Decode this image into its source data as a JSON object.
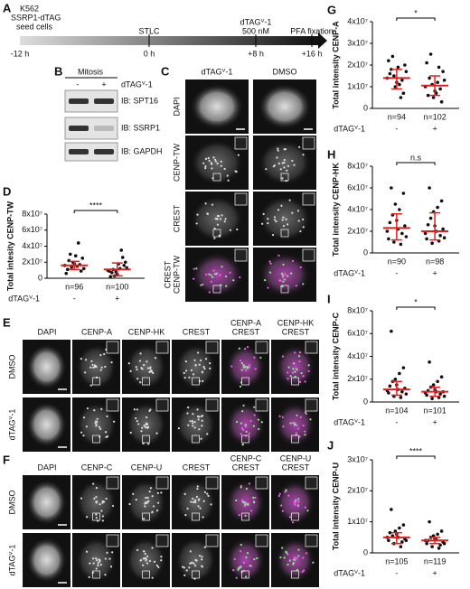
{
  "panel_labels": [
    "A",
    "B",
    "C",
    "D",
    "E",
    "F",
    "G",
    "H",
    "I",
    "J"
  ],
  "timeline": {
    "start_label": [
      "K562",
      "SSRP1-dTAG",
      "seed cells"
    ],
    "start_time": "-12 h",
    "events": [
      {
        "label": [
          "STLC"
        ],
        "time": "0 h"
      },
      {
        "label": [
          "dTAGⱽ-1",
          "500 nM"
        ],
        "time": "+8 h"
      },
      {
        "label": [
          "PFA fixation"
        ],
        "time": "+16 h"
      }
    ]
  },
  "blot": {
    "condition": "Mitosis",
    "treatment": "dTAGⱽ-1",
    "lanes": [
      "-",
      "+"
    ],
    "rows": [
      "IB: SPT16",
      "IB: SSRP1",
      "IB: GAPDH"
    ]
  },
  "panel_C": {
    "columns": [
      "dTAGⱽ-1",
      "DMSO"
    ],
    "rows": [
      [
        "DAPI"
      ],
      [
        "CENP-TW"
      ],
      [
        "CREST"
      ],
      [
        "CREST",
        "CENP-TW"
      ]
    ]
  },
  "panel_E": {
    "columns": [
      [
        "DAPI"
      ],
      [
        "CENP-A"
      ],
      [
        "CENP-HK"
      ],
      [
        "CREST"
      ],
      [
        "CENP-A",
        "CREST"
      ],
      [
        "CENP-HK",
        "CREST"
      ]
    ],
    "rows": [
      "DMSO",
      "dTAGⱽ-1"
    ]
  },
  "panel_F": {
    "columns": [
      [
        "DAPI"
      ],
      [
        "CENP-C"
      ],
      [
        "CENP-U"
      ],
      [
        "CREST"
      ],
      [
        "CENP-C",
        "CREST"
      ],
      [
        "CENP-U",
        "CREST"
      ]
    ],
    "rows": [
      "DMSO",
      "dTAGⱽ-1"
    ]
  },
  "chart_data": [
    {
      "type": "dotplot",
      "ylabel": "Total intesity CENP-TW",
      "xlabel": "dTAGⱽ-1",
      "significance": "****",
      "ylim": [
        0,
        80000000.0
      ],
      "yticks": [
        0,
        {
          "value": 20000000.0,
          "label": "2x10⁷"
        },
        {
          "value": 40000000.0,
          "label": "4x10⁷"
        },
        {
          "value": 60000000.0,
          "label": "6x10⁷"
        },
        {
          "value": 80000000.0,
          "label": "8x10⁷"
        }
      ],
      "groups": [
        {
          "name": "-",
          "n": "n=96",
          "center": 16000000.0,
          "spread": [
            11000000.0,
            21000000.0
          ],
          "values": [
            16000000.0,
            18000000.0,
            12000000.0,
            20000000.0,
            25000000.0,
            14000000.0,
            9000000.0,
            30000000.0,
            17000000.0,
            22000000.0,
            44000000.0,
            11000000.0,
            15000000.0,
            6000000.0,
            28000000.0
          ]
        },
        {
          "name": "+",
          "n": "n=100",
          "center": 11000000.0,
          "spread": [
            3000000.0,
            19000000.0
          ],
          "values": [
            10000000.0,
            5000000.0,
            13000000.0,
            8000000.0,
            20000000.0,
            3000000.0,
            16000000.0,
            11000000.0,
            26000000.0,
            7000000.0,
            35000000.0,
            2000000.0,
            12000000.0,
            9000000.0,
            18000000.0
          ]
        }
      ]
    },
    {
      "type": "dotplot",
      "ylabel": "Total intensity CENP-A",
      "xlabel": "dTAGⱽ-1",
      "significance": "*",
      "ylim": [
        0,
        40000000.0
      ],
      "yticks": [
        0,
        {
          "value": 10000000.0,
          "label": "1x10⁷"
        },
        {
          "value": 20000000.0,
          "label": "2x10⁷"
        },
        {
          "value": 30000000.0,
          "label": "3x10⁷"
        },
        {
          "value": 40000000.0,
          "label": "4x10⁷"
        }
      ],
      "groups": [
        {
          "name": "-",
          "n": "n=94",
          "center": 14000000.0,
          "spread": [
            9000000.0,
            18000000.0
          ],
          "values": [
            14000000.0,
            12000000.0,
            17000000.0,
            10000000.0,
            20000000.0,
            15000000.0,
            7000000.0,
            24000000.0,
            13000000.0,
            18000000.0,
            5000000.0,
            16000000.0,
            11000000.0,
            22000000.0,
            19000000.0
          ]
        },
        {
          "name": "+",
          "n": "n=102",
          "center": 10500000.0,
          "spread": [
            6000000.0,
            15000000.0
          ],
          "values": [
            10000000.0,
            8000000.0,
            13000000.0,
            5000000.0,
            17000000.0,
            11000000.0,
            3000000.0,
            25000000.0,
            9000000.0,
            14000000.0,
            19000000.0,
            6000000.0,
            12000000.0,
            21000000.0,
            7000000.0
          ]
        }
      ]
    },
    {
      "type": "dotplot",
      "ylabel": "Total intensity CENP-HK",
      "xlabel": "dTAGⱽ-1",
      "significance": "n.s",
      "ylim": [
        0,
        80000000.0
      ],
      "yticks": [
        0,
        {
          "value": 20000000.0,
          "label": "2x10⁷"
        },
        {
          "value": 40000000.0,
          "label": "4x10⁷"
        },
        {
          "value": 60000000.0,
          "label": "6x10⁷"
        },
        {
          "value": 80000000.0,
          "label": "8x10⁷"
        }
      ],
      "groups": [
        {
          "name": "-",
          "n": "n=90",
          "center": 23000000.0,
          "spread": [
            12000000.0,
            36000000.0
          ],
          "values": [
            20000000.0,
            30000000.0,
            15000000.0,
            45000000.0,
            25000000.0,
            10000000.0,
            55000000.0,
            35000000.0,
            18000000.0,
            60000000.0,
            8000000.0,
            28000000.0,
            40000000.0,
            13000000.0,
            22000000.0
          ]
        },
        {
          "name": "+",
          "n": "n=98",
          "center": 20000000.0,
          "spread": [
            12000000.0,
            37000000.0
          ],
          "values": [
            18000000.0,
            25000000.0,
            14000000.0,
            38000000.0,
            22000000.0,
            9000000.0,
            48000000.0,
            32000000.0,
            16000000.0,
            60000000.0,
            11000000.0,
            26000000.0,
            42000000.0,
            13000000.0,
            20000000.0
          ]
        }
      ]
    },
    {
      "type": "dotplot",
      "ylabel": "Total intensity CENP-C",
      "xlabel": "dTAGⱽ-1",
      "significance": "*",
      "ylim": [
        0,
        80000000.0
      ],
      "yticks": [
        0,
        {
          "value": 20000000.0,
          "label": "2x10⁷"
        },
        {
          "value": 40000000.0,
          "label": "4x10⁷"
        },
        {
          "value": 60000000.0,
          "label": "6x10⁷"
        },
        {
          "value": 80000000.0,
          "label": "8x10⁷"
        }
      ],
      "groups": [
        {
          "name": "-",
          "n": "n=104",
          "center": 11000000.0,
          "spread": [
            6000000.0,
            18000000.0
          ],
          "values": [
            10000000.0,
            15000000.0,
            7000000.0,
            20000000.0,
            12000000.0,
            5000000.0,
            30000000.0,
            18000000.0,
            9000000.0,
            62000000.0,
            4000000.0,
            14000000.0,
            25000000.0,
            8000000.0,
            11000000.0
          ]
        },
        {
          "name": "+",
          "n": "n=101",
          "center": 9000000.0,
          "spread": [
            5000000.0,
            13000000.0
          ],
          "values": [
            8000000.0,
            11000000.0,
            5000000.0,
            15000000.0,
            9000000.0,
            3000000.0,
            22000000.0,
            13000000.0,
            7000000.0,
            35000000.0,
            4000000.0,
            10000000.0,
            18000000.0,
            6000000.0,
            9000000.0
          ]
        }
      ]
    },
    {
      "type": "dotplot",
      "ylabel": "Total intensity CENP-U",
      "xlabel": "dTAGⱽ-1",
      "significance": "****",
      "ylim": [
        0,
        30000000.0
      ],
      "yticks": [
        0,
        {
          "value": 10000000.0,
          "label": "1x10⁷"
        },
        {
          "value": 20000000.0,
          "label": "2x10⁷"
        },
        {
          "value": 30000000.0,
          "label": "3x10⁷"
        }
      ],
      "groups": [
        {
          "name": "-",
          "n": "n=105",
          "center": 5000000.0,
          "spread": [
            3000000.0,
            6500000.0
          ],
          "values": [
            5000000.0,
            6000000.0,
            4000000.0,
            7000000.0,
            4500000.0,
            3000000.0,
            9000000.0,
            5500000.0,
            3500000.0,
            14000000.0,
            2000000.0,
            6500000.0,
            8000000.0,
            4000000.0,
            5000000.0
          ]
        },
        {
          "name": "+",
          "n": "n=119",
          "center": 4000000.0,
          "spread": [
            3000000.0,
            5000000.0
          ],
          "values": [
            4000000.0,
            4500000.0,
            3000000.0,
            5500000.0,
            3500000.0,
            2000000.0,
            7000000.0,
            5000000.0,
            2500000.0,
            10000000.0,
            1500000.0,
            4000000.0,
            6000000.0,
            3000000.0,
            4200000.0
          ]
        }
      ]
    }
  ]
}
